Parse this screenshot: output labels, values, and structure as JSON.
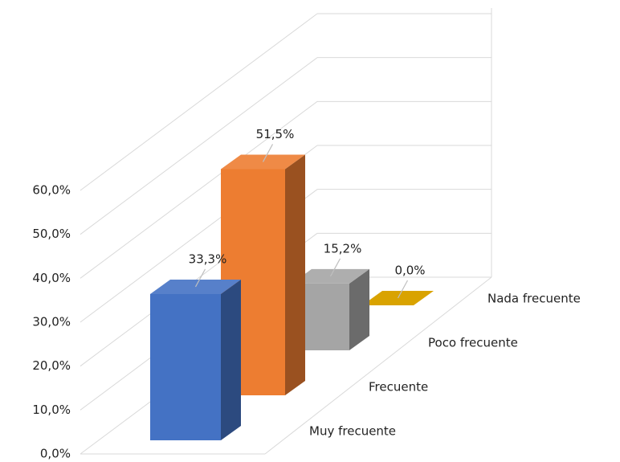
{
  "chart_data": {
    "type": "bar3d",
    "categories": [
      "Muy frecuente",
      "Frecuente",
      "Poco frecuente",
      "Nada frecuente"
    ],
    "values": [
      33.3,
      51.5,
      15.2,
      0.0
    ],
    "value_labels": [
      "33,3%",
      "51,5%",
      "15,2%",
      "0,0%"
    ],
    "colors": [
      "#4472c4",
      "#ed7d31",
      "#a5a5a5",
      "#ffc000"
    ],
    "ylim": [
      0,
      60
    ],
    "yticks": [
      {
        "value": 0,
        "label": "0,0%"
      },
      {
        "value": 10,
        "label": "10,0%"
      },
      {
        "value": 20,
        "label": "20,0%"
      },
      {
        "value": 30,
        "label": "30,0%"
      },
      {
        "value": 40,
        "label": "40,0%"
      },
      {
        "value": 50,
        "label": "50,0%"
      },
      {
        "value": 60,
        "label": "60,0%"
      }
    ],
    "grid": true
  }
}
